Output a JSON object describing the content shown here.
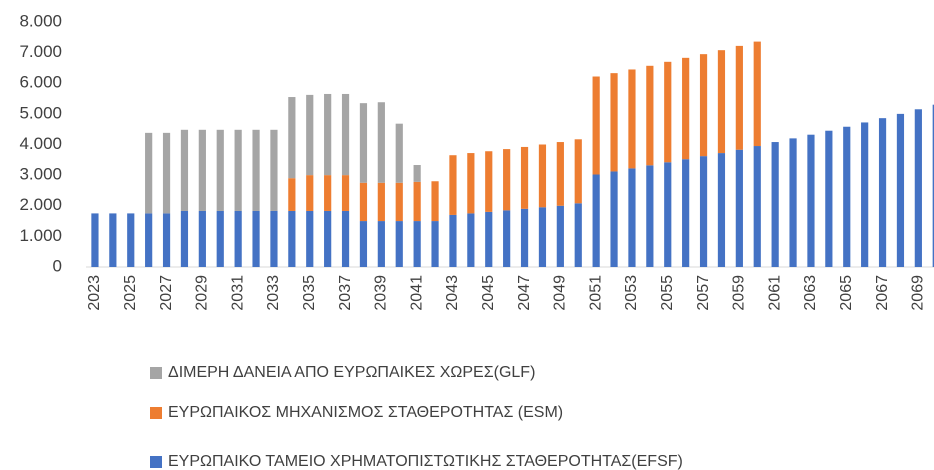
{
  "chart_data": {
    "type": "stacked_bar",
    "categories": [
      "2023",
      null,
      "2025",
      null,
      "2027",
      null,
      "2029",
      null,
      "2031",
      null,
      "2033",
      null,
      "2035",
      null,
      "2037",
      null,
      "2039",
      null,
      "2041",
      null,
      "2043",
      null,
      "2045",
      null,
      "2047",
      null,
      "2049",
      null,
      "2051",
      null,
      "2053",
      null,
      "2055",
      null,
      "2057",
      null,
      "2059",
      null,
      "2061",
      null,
      "2063",
      null,
      "2065",
      null,
      "2067",
      null,
      "2069",
      null
    ],
    "series": [
      {
        "name": "ΔΙΜΕΡΗ ΔΑΝΕΙΑ ΑΠΟ ΕΥΡΩΠΑΙΚΕΣ ΧΩΡΕΣ(GLF)",
        "color": "#a5a5a5",
        "values": [
          null,
          null,
          null,
          2630,
          2630,
          2650,
          2650,
          2650,
          2650,
          2650,
          2650,
          2650,
          2620,
          2650,
          2650,
          2600,
          2630,
          1930,
          550,
          null,
          null,
          null,
          null,
          null,
          null,
          null,
          null,
          null,
          null,
          null,
          null,
          null,
          null,
          null,
          null,
          null,
          null,
          null,
          null,
          null,
          null,
          null,
          null,
          null,
          null,
          null,
          null,
          null
        ]
      },
      {
        "name": "ΕΥΡΩΠΑΙΚΟΣ ΜΗΧΑΝΙΣΜΟΣ ΣΤΑΘΕΡΟΤΗΤΑΣ (ESM)",
        "color": "#ed7d31",
        "values": [
          null,
          null,
          null,
          null,
          null,
          null,
          null,
          null,
          null,
          null,
          null,
          1070,
          1170,
          1170,
          1170,
          1250,
          1250,
          1250,
          1280,
          1300,
          1950,
          1970,
          1980,
          2000,
          2020,
          2050,
          2080,
          2090,
          3200,
          3210,
          3230,
          3250,
          3280,
          3310,
          3330,
          3360,
          3390,
          3410,
          null,
          null,
          null,
          null,
          null,
          null,
          null,
          null,
          null,
          null
        ]
      },
      {
        "name": "ΕΥΡΩΠΑΙΚΟ ΤΑΜΕΙΟ ΧΡΗΜΑΤΟΠΙΣΤΩΤΙΚΗΣ ΣΤΑΘΕΡΟΤΗΤΑΣ(EFSF)",
        "color": "#4472c4",
        "values": [
          1750,
          1750,
          1750,
          1750,
          1750,
          1830,
          1830,
          1830,
          1830,
          1830,
          1830,
          1830,
          1830,
          1830,
          1830,
          1500,
          1500,
          1500,
          1500,
          1500,
          1700,
          1750,
          1800,
          1850,
          1900,
          1950,
          2000,
          2080,
          3020,
          3120,
          3220,
          3320,
          3420,
          3520,
          3620,
          3720,
          3830,
          3950,
          4080,
          4200,
          4320,
          4450,
          4580,
          4720,
          4860,
          5000,
          5150,
          5300
        ]
      }
    ],
    "ylim": [
      0,
      8000
    ],
    "yticks": [
      0,
      {
        "value": 1000,
        "label": "1.000"
      },
      {
        "value": 2000,
        "label": "2.000"
      },
      {
        "value": 3000,
        "label": "3.000"
      },
      {
        "value": 4000,
        "label": "4.000"
      },
      {
        "value": 5000,
        "label": "5.000"
      },
      {
        "value": 6000,
        "label": "6.000"
      },
      {
        "value": 7000,
        "label": "7.000"
      },
      {
        "value": 8000,
        "label": "8.000"
      }
    ],
    "grid": false
  }
}
